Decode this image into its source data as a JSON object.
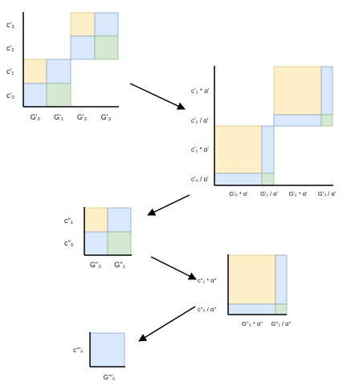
{
  "colors": {
    "yellow": "#fdf0c9",
    "blue": "#dae8fc",
    "green": "#d5e8d4",
    "yellow_stroke": "#d6b656",
    "blue_stroke": "#6c8ebf",
    "green_stroke": "#82b366",
    "axis": "#000000"
  },
  "diagram1": {
    "y_labels": [
      "c'₃",
      "c'₂",
      "c'₁",
      "c'₀"
    ],
    "x_labels": [
      "G'₀",
      "G'₁",
      "G'₂",
      "G'₃"
    ]
  },
  "diagram2": {
    "y_labels": [
      "c'₃ * α'",
      "c'₂ / α'",
      "c'₁ * α'",
      "c'₀ / α'"
    ],
    "x_labels": [
      "G'₀ * α'",
      "G'₁ / α'",
      "G'₂ * α'",
      "G'₃ / α'"
    ]
  },
  "diagram3": {
    "y_labels": [
      "c''₁",
      "c''₀"
    ],
    "x_labels": [
      "G''₀",
      "G''₁"
    ]
  },
  "diagram4": {
    "y_labels": [
      "c''₁ * α''",
      "c''₀ / α''"
    ],
    "x_labels": [
      "G''₀ * α''",
      "G''₁ / α''"
    ]
  },
  "diagram5": {
    "y_labels": [
      "c'''₀"
    ],
    "x_labels": [
      "G'''₀"
    ]
  }
}
